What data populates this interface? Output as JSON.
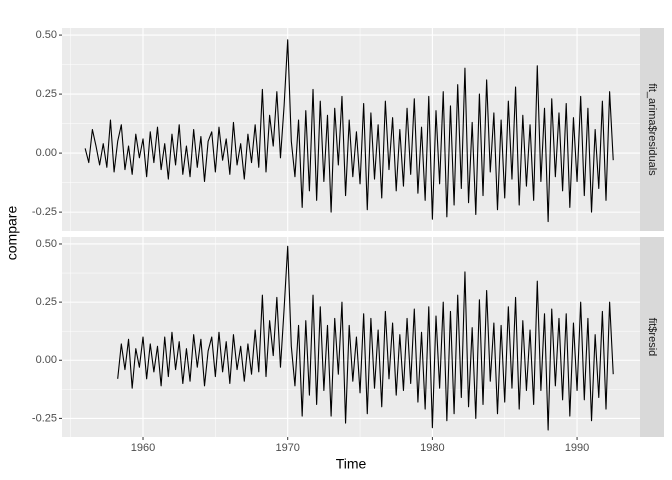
{
  "chart_data": {
    "type": "line",
    "facets": true,
    "xlabel": "Time",
    "ylabel": "compare",
    "xlim": [
      1954.4,
      1994.35
    ],
    "ylim": [
      -0.33,
      0.53
    ],
    "xticks": [
      1960,
      1970,
      1980,
      1990
    ],
    "yticks": [
      {
        "value": -0.25,
        "label": "-0.25"
      },
      {
        "value": 0,
        "label": "0.00"
      },
      0.25,
      {
        "value": 0.5,
        "label": "0.50"
      }
    ],
    "grid": true,
    "panel_color": "#ebebeb",
    "strip_color": "#d9d9d9",
    "series": [
      {
        "name": "fit_arima$residuals",
        "color": "#000000",
        "x": [
          1956,
          1956.25,
          1956.5,
          1956.75,
          1957,
          1957.25,
          1957.5,
          1957.75,
          1958,
          1958.25,
          1958.5,
          1958.75,
          1959,
          1959.25,
          1959.5,
          1959.75,
          1960,
          1960.25,
          1960.5,
          1960.75,
          1961,
          1961.25,
          1961.5,
          1961.75,
          1962,
          1962.25,
          1962.5,
          1962.75,
          1963,
          1963.25,
          1963.5,
          1963.75,
          1964,
          1964.25,
          1964.5,
          1964.75,
          1965,
          1965.25,
          1965.5,
          1965.75,
          1966,
          1966.25,
          1966.5,
          1966.75,
          1967,
          1967.25,
          1967.5,
          1967.75,
          1968,
          1968.25,
          1968.5,
          1968.75,
          1969,
          1969.25,
          1969.5,
          1969.75,
          1970,
          1970.25,
          1970.5,
          1970.75,
          1971,
          1971.25,
          1971.5,
          1971.75,
          1972,
          1972.25,
          1972.5,
          1972.75,
          1973,
          1973.25,
          1973.5,
          1973.75,
          1974,
          1974.25,
          1974.5,
          1974.75,
          1975,
          1975.25,
          1975.5,
          1975.75,
          1976,
          1976.25,
          1976.5,
          1976.75,
          1977,
          1977.25,
          1977.5,
          1977.75,
          1978,
          1978.25,
          1978.5,
          1978.75,
          1979,
          1979.25,
          1979.5,
          1979.75,
          1980,
          1980.25,
          1980.5,
          1980.75,
          1981,
          1981.25,
          1981.5,
          1981.75,
          1982,
          1982.25,
          1982.5,
          1982.75,
          1983,
          1983.25,
          1983.5,
          1983.75,
          1984,
          1984.25,
          1984.5,
          1984.75,
          1985,
          1985.25,
          1985.5,
          1985.75,
          1986,
          1986.25,
          1986.5,
          1986.75,
          1987,
          1987.25,
          1987.5,
          1987.75,
          1988,
          1988.25,
          1988.5,
          1988.75,
          1989,
          1989.25,
          1989.5,
          1989.75,
          1990,
          1990.25,
          1990.5,
          1990.75,
          1991,
          1991.25,
          1991.5,
          1991.75,
          1992,
          1992.25,
          1992.5
        ],
        "values": [
          0.02,
          -0.04,
          0.1,
          0.03,
          -0.05,
          0.04,
          -0.06,
          0.14,
          -0.08,
          0.05,
          0.12,
          -0.07,
          0.03,
          -0.09,
          0.08,
          -0.02,
          0.06,
          -0.1,
          0.09,
          -0.04,
          0.11,
          -0.07,
          0.04,
          -0.11,
          0.08,
          -0.05,
          0.12,
          -0.09,
          0.03,
          -0.1,
          0.1,
          -0.06,
          0.07,
          -0.12,
          0.05,
          0.09,
          -0.08,
          0.11,
          -0.03,
          0.06,
          -0.09,
          0.13,
          -0.05,
          0.04,
          -0.11,
          0.08,
          -0.04,
          0.12,
          -0.06,
          0.27,
          -0.08,
          0.16,
          0.03,
          0.26,
          -0.02,
          0.2,
          0.48,
          0.05,
          -0.1,
          0.14,
          -0.23,
          0.18,
          -0.16,
          0.27,
          -0.2,
          0.22,
          -0.12,
          0.16,
          -0.25,
          0.19,
          -0.05,
          0.24,
          -0.18,
          0.14,
          -0.1,
          0.09,
          -0.13,
          0.21,
          -0.24,
          0.17,
          -0.11,
          0.12,
          -0.19,
          0.22,
          -0.07,
          0.15,
          -0.16,
          0.1,
          -0.14,
          0.19,
          -0.09,
          0.23,
          -0.17,
          0.11,
          -0.2,
          0.24,
          -0.28,
          0.18,
          -0.13,
          0.26,
          -0.27,
          0.2,
          -0.22,
          0.29,
          -0.15,
          0.36,
          -0.21,
          0.13,
          -0.26,
          0.25,
          -0.18,
          0.31,
          -0.08,
          0.17,
          -0.24,
          0.14,
          -0.19,
          0.22,
          -0.11,
          0.28,
          -0.22,
          0.16,
          -0.14,
          0.12,
          -0.2,
          0.37,
          -0.12,
          0.19,
          -0.29,
          0.23,
          -0.1,
          0.17,
          -0.16,
          0.21,
          -0.23,
          0.15,
          -0.12,
          0.24,
          -0.18,
          0.19,
          -0.25,
          0.1,
          -0.15,
          0.22,
          -0.2,
          0.26,
          -0.03
        ]
      },
      {
        "name": "fit$resid",
        "color": "#000000",
        "x": [
          1958.25,
          1958.5,
          1958.75,
          1959,
          1959.25,
          1959.5,
          1959.75,
          1960,
          1960.25,
          1960.5,
          1960.75,
          1961,
          1961.25,
          1961.5,
          1961.75,
          1962,
          1962.25,
          1962.5,
          1962.75,
          1963,
          1963.25,
          1963.5,
          1963.75,
          1964,
          1964.25,
          1964.5,
          1964.75,
          1965,
          1965.25,
          1965.5,
          1965.75,
          1966,
          1966.25,
          1966.5,
          1966.75,
          1967,
          1967.25,
          1967.5,
          1967.75,
          1968,
          1968.25,
          1968.5,
          1968.75,
          1969,
          1969.25,
          1969.5,
          1969.75,
          1970,
          1970.25,
          1970.5,
          1970.75,
          1971,
          1971.25,
          1971.5,
          1971.75,
          1972,
          1972.25,
          1972.5,
          1972.75,
          1973,
          1973.25,
          1973.5,
          1973.75,
          1974,
          1974.25,
          1974.5,
          1974.75,
          1975,
          1975.25,
          1975.5,
          1975.75,
          1976,
          1976.25,
          1976.5,
          1976.75,
          1977,
          1977.25,
          1977.5,
          1977.75,
          1978,
          1978.25,
          1978.5,
          1978.75,
          1979,
          1979.25,
          1979.5,
          1979.75,
          1980,
          1980.25,
          1980.5,
          1980.75,
          1981,
          1981.25,
          1981.5,
          1981.75,
          1982,
          1982.25,
          1982.5,
          1982.75,
          1983,
          1983.25,
          1983.5,
          1983.75,
          1984,
          1984.25,
          1984.5,
          1984.75,
          1985,
          1985.25,
          1985.5,
          1985.75,
          1986,
          1986.25,
          1986.5,
          1986.75,
          1987,
          1987.25,
          1987.5,
          1987.75,
          1988,
          1988.25,
          1988.5,
          1988.75,
          1989,
          1989.25,
          1989.5,
          1989.75,
          1990,
          1990.25,
          1990.5,
          1990.75,
          1991,
          1991.25,
          1991.5,
          1991.75,
          1992,
          1992.25,
          1992.5
        ],
        "values": [
          -0.08,
          0.07,
          -0.04,
          0.09,
          -0.12,
          0.05,
          -0.03,
          0.1,
          -0.08,
          0.07,
          -0.05,
          0.06,
          -0.11,
          0.1,
          -0.07,
          0.12,
          -0.04,
          0.08,
          -0.1,
          0.05,
          -0.09,
          0.11,
          -0.03,
          0.09,
          -0.11,
          0.04,
          0.1,
          -0.07,
          0.12,
          -0.05,
          0.08,
          -0.1,
          0.11,
          -0.04,
          0.06,
          -0.09,
          0.07,
          -0.06,
          0.13,
          -0.05,
          0.28,
          -0.07,
          0.17,
          0.02,
          0.27,
          -0.03,
          0.22,
          0.49,
          0.06,
          -0.11,
          0.15,
          -0.24,
          0.17,
          -0.15,
          0.28,
          -0.19,
          0.23,
          -0.13,
          0.15,
          -0.24,
          0.18,
          -0.06,
          0.25,
          -0.27,
          0.15,
          -0.09,
          0.1,
          -0.14,
          0.2,
          -0.23,
          0.18,
          -0.12,
          0.13,
          -0.2,
          0.21,
          -0.08,
          0.16,
          -0.15,
          0.11,
          -0.13,
          0.18,
          -0.1,
          0.22,
          -0.18,
          0.12,
          -0.21,
          0.23,
          -0.29,
          0.19,
          -0.12,
          0.25,
          -0.26,
          0.21,
          -0.23,
          0.28,
          -0.16,
          0.38,
          -0.2,
          0.14,
          -0.25,
          0.26,
          -0.19,
          0.3,
          -0.09,
          0.16,
          -0.23,
          0.15,
          -0.18,
          0.23,
          -0.12,
          0.27,
          -0.21,
          0.17,
          -0.13,
          0.13,
          -0.19,
          0.34,
          -0.13,
          0.2,
          -0.3,
          0.22,
          -0.11,
          0.18,
          -0.17,
          0.2,
          -0.24,
          0.16,
          -0.13,
          0.25,
          -0.17,
          0.18,
          -0.26,
          0.11,
          -0.16,
          0.21,
          -0.21,
          0.25,
          -0.06
        ]
      }
    ]
  }
}
